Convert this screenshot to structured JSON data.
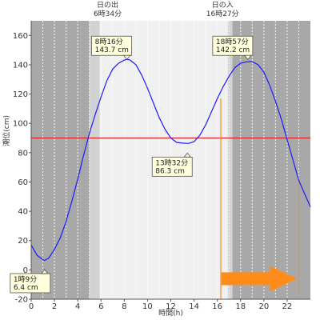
{
  "chart_data": {
    "type": "line",
    "xlabel": "時間(h)",
    "ylabel": "潮位(cm)",
    "xlim": [
      0,
      24
    ],
    "ylim": [
      -20,
      170
    ],
    "x_ticks": [
      0,
      2,
      4,
      6,
      8,
      10,
      12,
      14,
      16,
      18,
      20,
      22
    ],
    "y_ticks": [
      -20,
      0,
      20,
      40,
      60,
      80,
      100,
      120,
      140,
      160
    ],
    "grid": "x",
    "colors": {
      "night": "#a8a8a8",
      "twilight": "#d2d2d2",
      "day": "#f0f0f0",
      "curve": "#1a1aff",
      "reference": "#e02020",
      "marker": "#ff8c1a",
      "arrow": "#ff8c1a"
    },
    "series": [
      {
        "x": [
          0,
          0.5,
          1.0,
          1.15,
          1.5,
          2.0,
          2.5,
          3.0,
          3.5,
          4.0,
          4.5,
          5.0,
          5.5,
          6.0,
          6.5,
          7.0,
          7.5,
          8.0,
          8.27,
          8.5,
          9.0,
          9.5,
          10.0,
          10.5,
          11.0,
          11.5,
          12.0,
          12.5,
          13.0,
          13.53,
          14.0,
          14.5,
          15.0,
          15.5,
          16.0,
          16.5,
          17.0,
          17.5,
          18.0,
          18.5,
          18.95,
          19.5,
          20.0,
          20.5,
          21.0,
          21.5,
          22.0,
          22.5,
          23.0,
          23.5,
          24.0
        ],
        "values": [
          17,
          10,
          7,
          6.4,
          8,
          14,
          22,
          33,
          47,
          62,
          78,
          93,
          106,
          118,
          129,
          137,
          141,
          143.2,
          143.7,
          143.2,
          140,
          133,
          124,
          114,
          104,
          96,
          90,
          87,
          86.5,
          86.3,
          87.5,
          92,
          99,
          108,
          117,
          125,
          132,
          138,
          141,
          142,
          142.2,
          140,
          135,
          126,
          115,
          103,
          89,
          75,
          61,
          52,
          43
        ]
      }
    ],
    "reference_line": {
      "y": 90
    },
    "bands": [
      {
        "x0": 0,
        "x1": 5.0,
        "shade": "night"
      },
      {
        "x0": 5.0,
        "x1": 5.9,
        "shade": "twilight"
      },
      {
        "x0": 5.9,
        "x1": 16.9,
        "shade": "day"
      },
      {
        "x0": 16.9,
        "x1": 17.3,
        "shade": "twilight"
      },
      {
        "x0": 17.3,
        "x1": 24,
        "shade": "night"
      }
    ],
    "sunrise": {
      "label": "日の出",
      "time": "6時34分",
      "x": 6.57
    },
    "sunset": {
      "label": "日の入",
      "time": "16時27分",
      "x": 16.45
    },
    "markers": [
      {
        "x": 16.3,
        "y0": -20,
        "y1": 117
      },
      {
        "x": 23.0,
        "y0": -20,
        "y1": 61
      }
    ],
    "annotations": [
      {
        "time": "8時16分",
        "level": "143.7 cm",
        "x": 8.27,
        "y": 143.7,
        "box_x": 5.2,
        "box_y": 159.5,
        "pointer": "down"
      },
      {
        "time": "13時32分",
        "level": "86.3 cm",
        "x": 13.53,
        "y": 86.3,
        "box_x": 10.4,
        "box_y": 77.0,
        "pointer": "up"
      },
      {
        "time": "18時57分",
        "level": "142.2 cm",
        "x": 18.95,
        "y": 142.2,
        "box_x": 15.6,
        "box_y": 159.5,
        "pointer": "down"
      },
      {
        "time": "1時9分",
        "level": "6.4 cm",
        "x": 1.15,
        "y": 6.4,
        "box_x": -1.8,
        "box_y": -2.5,
        "pointer": "up"
      }
    ],
    "arrow": {
      "x0": 16.9,
      "x1": 23.0,
      "y": -6
    }
  }
}
